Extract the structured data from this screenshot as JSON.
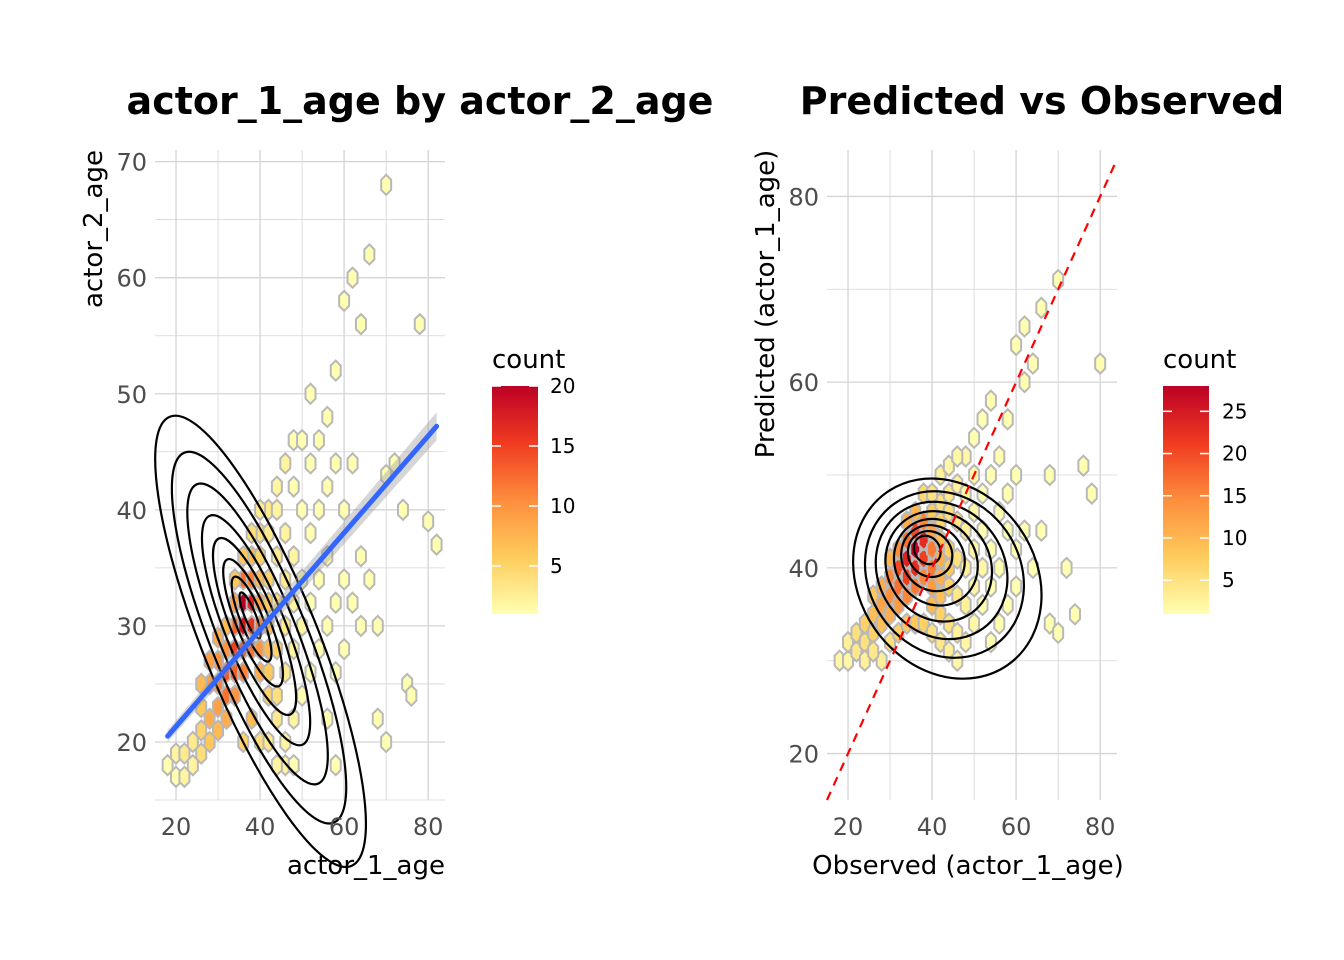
{
  "chart_data": [
    {
      "type": "scatter",
      "title": "actor_1_age by actor_2_age",
      "xlabel": "actor_1_age",
      "ylabel": "actor_2_age",
      "xlim": [
        15,
        84
      ],
      "ylim": [
        15,
        71
      ],
      "xticks": [
        20,
        40,
        60,
        80
      ],
      "yticks": [
        20,
        30,
        40,
        50,
        60,
        70
      ],
      "legend": {
        "title": "count",
        "ticks": [
          5,
          10,
          15,
          20
        ],
        "max": 20,
        "placement": "right"
      },
      "trend_line": {
        "x": [
          18,
          82
        ],
        "y": [
          20.5,
          47.2
        ],
        "color": "#3366ff"
      },
      "density_peak": [
        37,
        31
      ],
      "hex_counts": [
        [
          18,
          18,
          1
        ],
        [
          20,
          17,
          1
        ],
        [
          22,
          17,
          2
        ],
        [
          20,
          19,
          2
        ],
        [
          22,
          19,
          3
        ],
        [
          24,
          18,
          2
        ],
        [
          24,
          20,
          3
        ],
        [
          26,
          19,
          4
        ],
        [
          26,
          21,
          5
        ],
        [
          28,
          20,
          6
        ],
        [
          28,
          22,
          8
        ],
        [
          30,
          21,
          7
        ],
        [
          30,
          23,
          9
        ],
        [
          30,
          25,
          11
        ],
        [
          32,
          22,
          8
        ],
        [
          32,
          24,
          12
        ],
        [
          32,
          26,
          14
        ],
        [
          32,
          28,
          10
        ],
        [
          34,
          24,
          10
        ],
        [
          34,
          26,
          13
        ],
        [
          34,
          28,
          15
        ],
        [
          34,
          30,
          13
        ],
        [
          34,
          32,
          9
        ],
        [
          36,
          26,
          11
        ],
        [
          36,
          28,
          14
        ],
        [
          36,
          30,
          18
        ],
        [
          36,
          32,
          20
        ],
        [
          36,
          34,
          12
        ],
        [
          38,
          28,
          12
        ],
        [
          38,
          30,
          16
        ],
        [
          38,
          32,
          17
        ],
        [
          38,
          34,
          11
        ],
        [
          38,
          36,
          7
        ],
        [
          40,
          26,
          8
        ],
        [
          40,
          28,
          10
        ],
        [
          40,
          30,
          11
        ],
        [
          40,
          32,
          9
        ],
        [
          40,
          34,
          7
        ],
        [
          40,
          36,
          5
        ],
        [
          40,
          38,
          4
        ],
        [
          42,
          24,
          5
        ],
        [
          42,
          26,
          6
        ],
        [
          42,
          28,
          7
        ],
        [
          42,
          30,
          7
        ],
        [
          42,
          32,
          6
        ],
        [
          42,
          34,
          5
        ],
        [
          42,
          38,
          3
        ],
        [
          42,
          40,
          3
        ],
        [
          44,
          22,
          3
        ],
        [
          44,
          24,
          4
        ],
        [
          44,
          28,
          5
        ],
        [
          44,
          32,
          4
        ],
        [
          44,
          36,
          3
        ],
        [
          44,
          40,
          2
        ],
        [
          44,
          42,
          2
        ],
        [
          46,
          20,
          2
        ],
        [
          46,
          26,
          3
        ],
        [
          46,
          30,
          3
        ],
        [
          46,
          34,
          3
        ],
        [
          46,
          38,
          2
        ],
        [
          46,
          44,
          2
        ],
        [
          48,
          22,
          2
        ],
        [
          48,
          28,
          2
        ],
        [
          48,
          32,
          2
        ],
        [
          48,
          36,
          2
        ],
        [
          48,
          42,
          1
        ],
        [
          48,
          46,
          1
        ],
        [
          50,
          24,
          1
        ],
        [
          50,
          30,
          2
        ],
        [
          50,
          34,
          1
        ],
        [
          50,
          40,
          1
        ],
        [
          50,
          46,
          1
        ],
        [
          52,
          26,
          1
        ],
        [
          52,
          32,
          1
        ],
        [
          52,
          38,
          1
        ],
        [
          52,
          44,
          1
        ],
        [
          52,
          50,
          1
        ],
        [
          54,
          28,
          1
        ],
        [
          54,
          34,
          1
        ],
        [
          54,
          40,
          1
        ],
        [
          54,
          46,
          1
        ],
        [
          56,
          22,
          1
        ],
        [
          56,
          30,
          1
        ],
        [
          56,
          36,
          1
        ],
        [
          56,
          42,
          1
        ],
        [
          56,
          48,
          1
        ],
        [
          58,
          18,
          1
        ],
        [
          58,
          26,
          1
        ],
        [
          58,
          32,
          1
        ],
        [
          58,
          44,
          1
        ],
        [
          58,
          52,
          1
        ],
        [
          60,
          28,
          1
        ],
        [
          60,
          34,
          1
        ],
        [
          60,
          40,
          1
        ],
        [
          60,
          58,
          1
        ],
        [
          62,
          32,
          1
        ],
        [
          62,
          44,
          1
        ],
        [
          62,
          60,
          1
        ],
        [
          64,
          30,
          1
        ],
        [
          64,
          36,
          1
        ],
        [
          64,
          56,
          1
        ],
        [
          66,
          34,
          1
        ],
        [
          66,
          62,
          1
        ],
        [
          68,
          22,
          1
        ],
        [
          68,
          30,
          1
        ],
        [
          70,
          20,
          1
        ],
        [
          70,
          43,
          1
        ],
        [
          70,
          68,
          1
        ],
        [
          72,
          44,
          1
        ],
        [
          74,
          40,
          1
        ],
        [
          75,
          25,
          1
        ],
        [
          76,
          24,
          1
        ],
        [
          78,
          56,
          1
        ],
        [
          80,
          39,
          1
        ],
        [
          82,
          37,
          1
        ],
        [
          46,
          18,
          2
        ],
        [
          44,
          18,
          2
        ],
        [
          48,
          18,
          1
        ],
        [
          40,
          20,
          4
        ],
        [
          42,
          20,
          3
        ],
        [
          36,
          20,
          5
        ],
        [
          38,
          22,
          7
        ],
        [
          26,
          23,
          6
        ],
        [
          28,
          25,
          9
        ],
        [
          30,
          27,
          10
        ],
        [
          26,
          25,
          7
        ],
        [
          28,
          27,
          9
        ],
        [
          30,
          29,
          8
        ],
        [
          32,
          30,
          7
        ],
        [
          34,
          34,
          6
        ],
        [
          36,
          36,
          6
        ],
        [
          38,
          38,
          4
        ],
        [
          40,
          40,
          3
        ]
      ]
    },
    {
      "type": "scatter",
      "title": "Predicted vs Observed",
      "xlabel": "Observed (actor_1_age)",
      "ylabel": "Predicted (actor_1_age)",
      "xlim": [
        15,
        84
      ],
      "ylim": [
        15,
        85
      ],
      "xticks": [
        20,
        40,
        60,
        80
      ],
      "yticks": [
        20,
        40,
        60,
        80
      ],
      "legend": {
        "title": "count",
        "ticks": [
          5,
          10,
          15,
          20,
          25
        ],
        "max": 28,
        "placement": "right"
      },
      "reference_line": {
        "x": [
          15,
          84
        ],
        "y": [
          15,
          84
        ],
        "color": "#ff0000"
      },
      "density_peak": [
        37,
        42
      ],
      "hex_counts": [
        [
          18,
          30,
          2
        ],
        [
          20,
          30,
          2
        ],
        [
          20,
          32,
          3
        ],
        [
          22,
          31,
          4
        ],
        [
          22,
          33,
          5
        ],
        [
          24,
          32,
          5
        ],
        [
          24,
          34,
          7
        ],
        [
          26,
          33,
          7
        ],
        [
          26,
          35,
          9
        ],
        [
          26,
          37,
          8
        ],
        [
          28,
          34,
          9
        ],
        [
          28,
          36,
          12
        ],
        [
          28,
          38,
          11
        ],
        [
          30,
          35,
          11
        ],
        [
          30,
          37,
          14
        ],
        [
          30,
          39,
          15
        ],
        [
          30,
          41,
          10
        ],
        [
          32,
          36,
          13
        ],
        [
          32,
          38,
          17
        ],
        [
          32,
          40,
          20
        ],
        [
          32,
          42,
          14
        ],
        [
          34,
          37,
          15
        ],
        [
          34,
          39,
          21
        ],
        [
          34,
          41,
          24
        ],
        [
          34,
          43,
          17
        ],
        [
          36,
          38,
          16
        ],
        [
          36,
          40,
          23
        ],
        [
          36,
          42,
          28
        ],
        [
          36,
          44,
          20
        ],
        [
          38,
          39,
          15
        ],
        [
          38,
          41,
          21
        ],
        [
          38,
          43,
          23
        ],
        [
          38,
          45,
          15
        ],
        [
          40,
          36,
          10
        ],
        [
          40,
          38,
          13
        ],
        [
          40,
          40,
          16
        ],
        [
          40,
          42,
          16
        ],
        [
          40,
          44,
          12
        ],
        [
          40,
          46,
          8
        ],
        [
          42,
          35,
          7
        ],
        [
          42,
          37,
          9
        ],
        [
          42,
          39,
          11
        ],
        [
          42,
          41,
          11
        ],
        [
          42,
          43,
          9
        ],
        [
          42,
          45,
          7
        ],
        [
          42,
          47,
          5
        ],
        [
          44,
          34,
          5
        ],
        [
          44,
          38,
          7
        ],
        [
          44,
          40,
          8
        ],
        [
          44,
          42,
          7
        ],
        [
          44,
          46,
          5
        ],
        [
          44,
          48,
          4
        ],
        [
          46,
          33,
          3
        ],
        [
          46,
          37,
          4
        ],
        [
          46,
          41,
          5
        ],
        [
          46,
          45,
          4
        ],
        [
          46,
          49,
          3
        ],
        [
          48,
          32,
          2
        ],
        [
          48,
          36,
          3
        ],
        [
          48,
          40,
          3
        ],
        [
          48,
          44,
          3
        ],
        [
          48,
          48,
          2
        ],
        [
          48,
          52,
          2
        ],
        [
          50,
          34,
          2
        ],
        [
          50,
          38,
          2
        ],
        [
          50,
          42,
          2
        ],
        [
          50,
          46,
          2
        ],
        [
          50,
          50,
          2
        ],
        [
          50,
          54,
          1
        ],
        [
          52,
          36,
          1
        ],
        [
          52,
          40,
          2
        ],
        [
          52,
          44,
          1
        ],
        [
          52,
          48,
          1
        ],
        [
          52,
          56,
          1
        ],
        [
          54,
          32,
          1
        ],
        [
          54,
          38,
          1
        ],
        [
          54,
          42,
          1
        ],
        [
          54,
          50,
          1
        ],
        [
          54,
          58,
          1
        ],
        [
          56,
          34,
          1
        ],
        [
          56,
          40,
          1
        ],
        [
          56,
          46,
          1
        ],
        [
          56,
          52,
          1
        ],
        [
          58,
          36,
          1
        ],
        [
          58,
          44,
          1
        ],
        [
          58,
          48,
          1
        ],
        [
          58,
          56,
          1
        ],
        [
          60,
          38,
          1
        ],
        [
          60,
          42,
          1
        ],
        [
          60,
          50,
          1
        ],
        [
          60,
          64,
          1
        ],
        [
          62,
          44,
          1
        ],
        [
          62,
          60,
          1
        ],
        [
          62,
          66,
          1
        ],
        [
          64,
          40,
          1
        ],
        [
          64,
          62,
          1
        ],
        [
          66,
          44,
          1
        ],
        [
          66,
          68,
          1
        ],
        [
          68,
          34,
          1
        ],
        [
          68,
          50,
          1
        ],
        [
          70,
          33,
          1
        ],
        [
          70,
          71,
          1
        ],
        [
          72,
          40,
          1
        ],
        [
          74,
          35,
          1
        ],
        [
          76,
          51,
          1
        ],
        [
          78,
          48,
          1
        ],
        [
          80,
          62,
          1
        ],
        [
          28,
          30,
          3
        ],
        [
          30,
          32,
          5
        ],
        [
          32,
          33,
          7
        ],
        [
          34,
          34,
          8
        ],
        [
          36,
          34,
          8
        ],
        [
          38,
          34,
          7
        ],
        [
          40,
          33,
          5
        ],
        [
          42,
          32,
          4
        ],
        [
          44,
          31,
          3
        ],
        [
          46,
          30,
          2
        ],
        [
          24,
          30,
          3
        ],
        [
          26,
          31,
          4
        ],
        [
          36,
          46,
          10
        ],
        [
          38,
          48,
          6
        ],
        [
          34,
          45,
          11
        ],
        [
          40,
          48,
          5
        ],
        [
          42,
          50,
          3
        ],
        [
          44,
          51,
          2
        ],
        [
          46,
          52,
          2
        ]
      ]
    }
  ]
}
